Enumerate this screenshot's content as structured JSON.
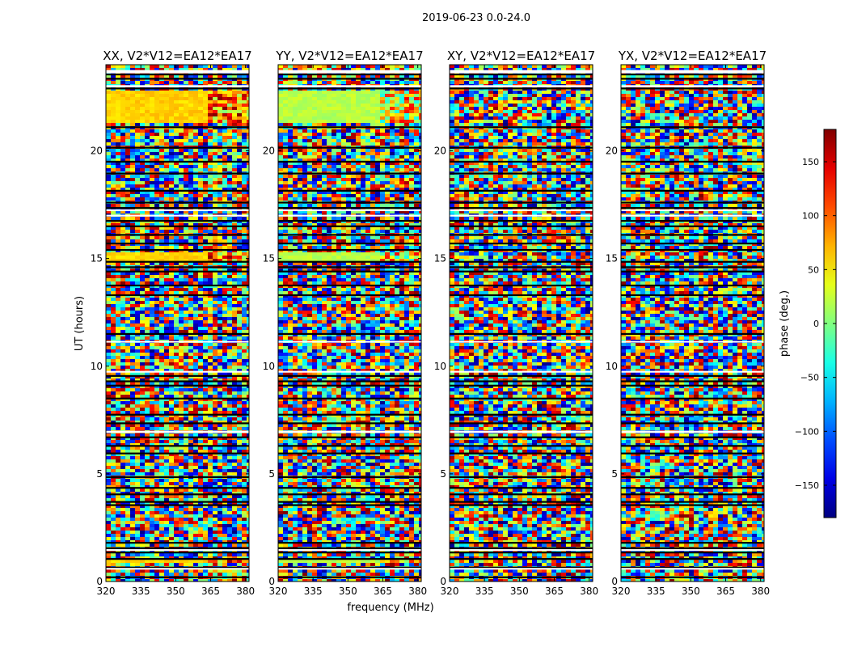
{
  "figure": {
    "suptitle": "2019-06-23 0.0-24.0",
    "colors": {
      "background": "#ffffff",
      "axis": "#000000",
      "gap": "#ffffff",
      "flag_band": "#000000"
    }
  },
  "chart_data": {
    "type": "heatmap",
    "xlabel": "frequency (MHz)",
    "ylabel": "UT (hours)",
    "xlim": [
      320,
      381.5
    ],
    "ylim": [
      0,
      24
    ],
    "xticks": [
      320,
      335,
      350,
      365,
      380
    ],
    "yticks": [
      0,
      5,
      10,
      15,
      20
    ],
    "colormap": "jet",
    "panels": [
      {
        "title": "XX, V2*V12=EA12*EA17",
        "coherent_phase_deg": 60
      },
      {
        "title": "YY, V2*V12=EA12*EA17",
        "coherent_phase_deg": 20
      },
      {
        "title": "XY, V2*V12=EA12*EA17",
        "coherent_phase_deg": null
      },
      {
        "title": "YX, V2*V12=EA12*EA17",
        "coherent_phase_deg": null
      }
    ],
    "coherent_bands_ut": [
      [
        21.3,
        22.8
      ],
      [
        14.9,
        15.3
      ],
      [
        0.9,
        1.05
      ]
    ],
    "coherent_band_split_mhz": 363,
    "colorbar": {
      "label": "phase (deg.)",
      "range": [
        -180,
        180
      ],
      "ticks": [
        150,
        100,
        50,
        0,
        -50,
        -100,
        -150
      ],
      "tick_labels": [
        "150",
        "100",
        "50",
        "0",
        "−50",
        "−100",
        "−150"
      ]
    },
    "flag_ut": [
      0.2,
      0.65,
      1.05,
      1.35,
      1.55,
      1.8,
      3.55,
      3.7,
      4.05,
      4.35,
      4.85,
      5.95,
      6.3,
      6.7,
      7.35,
      7.75,
      8.5,
      9.1,
      9.3,
      9.55,
      11.5,
      13.3,
      13.75,
      14.4,
      14.6,
      14.85,
      15.4,
      15.7,
      16.1,
      16.5,
      16.75,
      17.35,
      17.6,
      18.15,
      18.95,
      19.5,
      20.15,
      21.1,
      22.9,
      23.35,
      23.55
    ],
    "gap_ut": [
      [
        0.55,
        0.63
      ],
      [
        1.42,
        1.5
      ],
      [
        6.9,
        7.0
      ],
      [
        9.7,
        9.78
      ],
      [
        11.1,
        11.17
      ],
      [
        16.95,
        17.03
      ],
      [
        17.2,
        17.28
      ],
      [
        22.95,
        23.05
      ],
      [
        23.6,
        23.75
      ]
    ]
  }
}
